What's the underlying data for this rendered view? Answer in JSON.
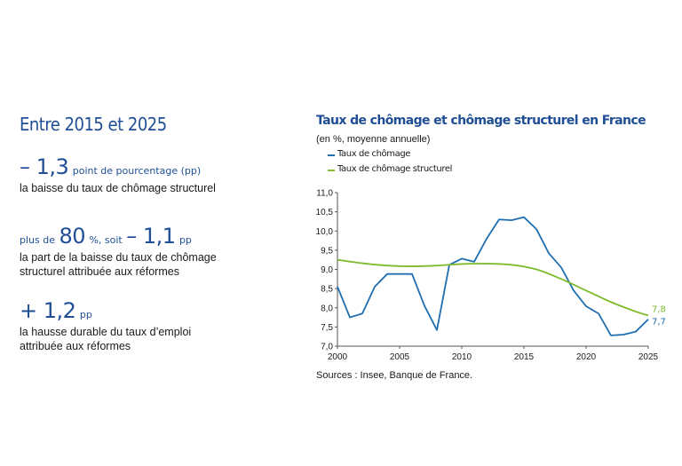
{
  "left_panel": {
    "period": "Entre 2015 et 2025",
    "stats": [
      {
        "prefix": "",
        "value": "– 1,3",
        "unit": "point de pourcentage (pp)",
        "mid": "",
        "value2": "",
        "unit2": "",
        "description": "la baisse du taux de chômage structurel"
      },
      {
        "prefix": "plus de",
        "value": "80",
        "unit": "%, soit",
        "mid": "",
        "value2": "– 1,1",
        "unit2": "pp",
        "description": "la part de la baisse du taux de chômage structurel attribuée aux réformes"
      },
      {
        "prefix": "",
        "value": "+ 1,2",
        "unit": "pp",
        "mid": "",
        "value2": "",
        "unit2": "",
        "description": "la hausse durable du taux d’emploi attribuée aux réformes"
      }
    ]
  },
  "sources": "Sources : Insee, Banque de France.",
  "colors": {
    "blue": "#1f4e96",
    "unemployment": "#1f6eb0",
    "structural": "#7dbb2a"
  },
  "chart_data": {
    "type": "line",
    "title": "Taux de chômage et chômage structurel en France",
    "subtitle": "(en %, moyenne annuelle)",
    "xlim": [
      2000,
      2025
    ],
    "ylim": [
      7.0,
      11.0
    ],
    "xticks": [
      "2000",
      "2005",
      "2010",
      "2015",
      "2020",
      "2025"
    ],
    "yticks": [
      "11,0",
      "10,5",
      "10,0",
      "9,5",
      "9,0",
      "8,5",
      "8,0",
      "7,5",
      "7,0"
    ],
    "legend_position": "top-left",
    "grid": false,
    "series": [
      {
        "name": "Taux de chômage",
        "color": "#1f6eb0",
        "x": [
          2000,
          2001,
          2002,
          2003,
          2004,
          2005,
          2006,
          2007,
          2008,
          2009,
          2010,
          2011,
          2012,
          2013,
          2014,
          2015,
          2016,
          2017,
          2018,
          2019,
          2020,
          2021,
          2022,
          2023,
          2024,
          2025
        ],
        "y": [
          8.55,
          7.75,
          7.85,
          8.55,
          8.88,
          8.88,
          8.88,
          8.05,
          7.42,
          9.12,
          9.28,
          9.2,
          9.8,
          10.3,
          10.28,
          10.36,
          10.05,
          9.42,
          9.05,
          8.45,
          8.04,
          7.85,
          7.28,
          7.3,
          7.38,
          7.7
        ],
        "end_label": "7,7"
      },
      {
        "name": "Taux de chômage structurel",
        "color": "#7dbb2a",
        "x": [
          2000,
          2002,
          2004,
          2006,
          2008,
          2010,
          2012,
          2014,
          2016,
          2018,
          2020,
          2022,
          2024,
          2025
        ],
        "y": [
          9.25,
          9.16,
          9.1,
          9.08,
          9.1,
          9.14,
          9.15,
          9.12,
          9.0,
          8.75,
          8.45,
          8.15,
          7.9,
          7.8
        ],
        "end_label": "7,8"
      }
    ]
  }
}
